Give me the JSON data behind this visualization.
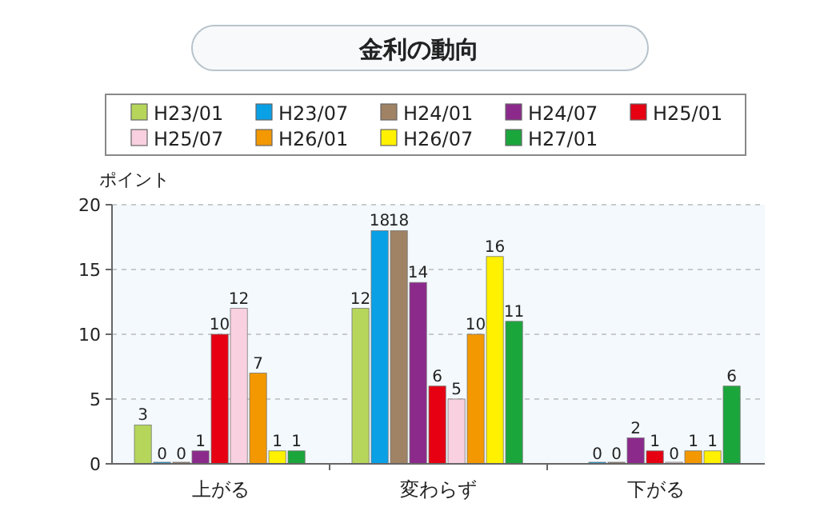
{
  "chart_data": {
    "type": "bar",
    "title": "金利の動向",
    "ylabel": "ポイント",
    "categories": [
      "上がる",
      "変わらず",
      "下がる"
    ],
    "series": [
      {
        "name": "H23/01",
        "color": "#b5d65a",
        "values": [
          3,
          12,
          null
        ]
      },
      {
        "name": "H23/07",
        "color": "#0aa0e6",
        "values": [
          0,
          18,
          0
        ]
      },
      {
        "name": "H24/01",
        "color": "#a08264",
        "values": [
          0,
          18,
          0
        ]
      },
      {
        "name": "H24/07",
        "color": "#8c2a8c",
        "values": [
          1,
          14,
          2
        ]
      },
      {
        "name": "H25/01",
        "color": "#e60012",
        "values": [
          10,
          6,
          1
        ]
      },
      {
        "name": "H25/07",
        "color": "#f9d0e0",
        "values": [
          12,
          5,
          0
        ]
      },
      {
        "name": "H26/01",
        "color": "#f39800",
        "values": [
          7,
          10,
          1
        ]
      },
      {
        "name": "H26/07",
        "color": "#fff100",
        "values": [
          1,
          16,
          1
        ]
      },
      {
        "name": "H27/01",
        "color": "#1ba63c",
        "values": [
          1,
          11,
          6
        ]
      }
    ],
    "ylim": [
      0,
      20
    ],
    "yticks": [
      0,
      5,
      10,
      15,
      20
    ],
    "grid": "y",
    "legend": "top",
    "data_labels": true
  }
}
